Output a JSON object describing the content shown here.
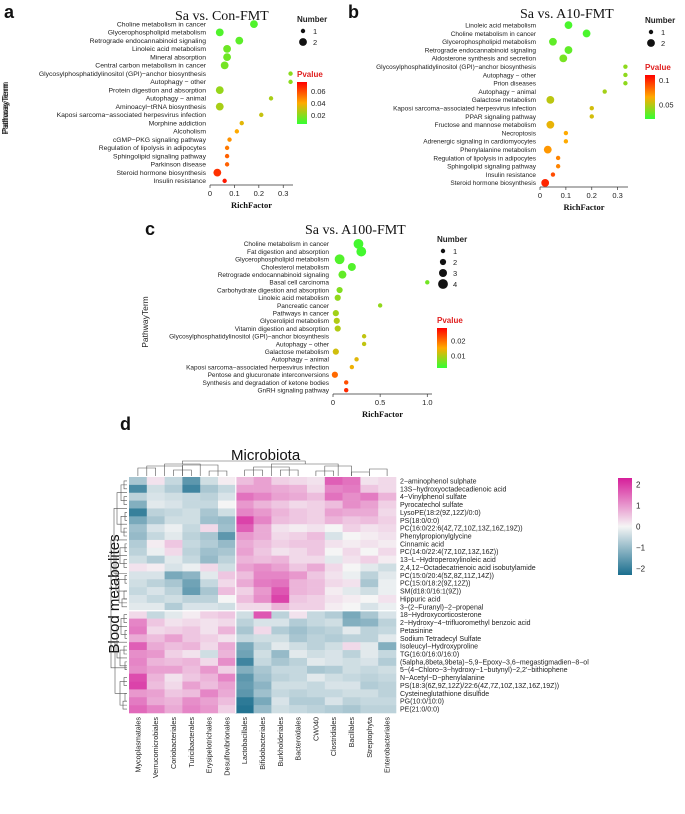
{
  "colors": {
    "low": "#33ff33",
    "mid": "#ffaa00",
    "high": "#ff0000",
    "heat_neg": "#1a6e8e",
    "heat_mid": "#f5f5f5",
    "heat_pos": "#d61e9a"
  },
  "panels": [
    {
      "letter": "a",
      "chart_data": {
        "type": "scatter",
        "title": "Sa vs. Con-FMT",
        "xlabel": "RichFactor",
        "ylabel": "PathwayTerm",
        "xticks": [
          "0",
          "0.1",
          "0.2",
          "0.3"
        ],
        "xlim": [
          0,
          0.34
        ],
        "size_legend_title": "Number",
        "size_legend": [
          "1",
          "2"
        ],
        "color_legend_title": "Pvalue",
        "color_legend": [
          "0.06",
          "0.04",
          "0.02"
        ],
        "cmin": 0.005,
        "cmax": 0.075,
        "terms": [
          "Choline metabolism in cancer",
          "Glycerophospholipid metabolism",
          "Retrograde endocannabinoid signaling",
          "Linoleic acid metabolism",
          "Mineral absorption",
          "Central carbon metabolism in cancer",
          "Glycosylphosphatidylinositol (GPI)−anchor biosynthesis",
          "Autophagy − other",
          "Protein digestion and absorption",
          "Autophagy − animal",
          "Aminoacyl−tRNA biosynthesis",
          "Kaposi sarcoma−associated herpesvirus infection",
          "Morphine addiction",
          "Alcoholism",
          "cGMP−PKG signaling pathway",
          "Regulation of lipolysis in adipocytes",
          "Sphingolipid signaling pathway",
          "Parkinson disease",
          "Steroid hormone biosynthesis",
          "Insulin resistance"
        ],
        "x": [
          0.18,
          0.04,
          0.12,
          0.07,
          0.07,
          0.06,
          0.33,
          0.33,
          0.04,
          0.25,
          0.04,
          0.21,
          0.13,
          0.11,
          0.08,
          0.07,
          0.07,
          0.07,
          0.03,
          0.06
        ],
        "count": [
          2,
          2,
          2,
          2,
          2,
          2,
          1,
          1,
          2,
          1,
          2,
          1,
          1,
          1,
          1,
          1,
          1,
          1,
          2,
          1
        ],
        "pvalue": [
          0.01,
          0.01,
          0.012,
          0.015,
          0.015,
          0.016,
          0.02,
          0.02,
          0.022,
          0.025,
          0.025,
          0.03,
          0.035,
          0.04,
          0.045,
          0.05,
          0.055,
          0.055,
          0.065,
          0.07
        ]
      }
    },
    {
      "letter": "b",
      "chart_data": {
        "type": "scatter",
        "title": "Sa vs. A10-FMT",
        "xlabel": "RichFactor",
        "ylabel": "PathwayTerm",
        "xticks": [
          "0",
          "0.1",
          "0.2",
          "0.3"
        ],
        "xlim": [
          0,
          0.34
        ],
        "size_legend_title": "Number",
        "size_legend": [
          "1",
          "2"
        ],
        "color_legend_title": "Pvalue",
        "color_legend": [
          "0.1",
          "0.05"
        ],
        "cmin": 0.02,
        "cmax": 0.11,
        "terms": [
          "Linoleic acid metabolism",
          "Choline metabolism in cancer",
          "Glycerophospholipid metabolism",
          "Retrograde endocannabinoid signaling",
          "Aldosterone synthesis and secretion",
          "Glycosylphosphatidylinositol (GPI)−anchor biosynthesis",
          "Autophagy − other",
          "Prion diseases",
          "Autophagy − animal",
          "Galactose metabolism",
          "Kaposi sarcoma−associated herpesvirus infection",
          "PPAR signaling pathway",
          "Fructose and mannose metabolism",
          "Necroptosis",
          "Adrenergic signaling in cardiomyocytes",
          "Phenylalanine metabolism",
          "Regulation of lipolysis in adipocytes",
          "Sphingolipid signaling pathway",
          "Insulin resistance",
          "Steroid hormone biosynthesis"
        ],
        "x": [
          0.11,
          0.18,
          0.05,
          0.11,
          0.09,
          0.33,
          0.33,
          0.33,
          0.25,
          0.04,
          0.2,
          0.2,
          0.04,
          0.1,
          0.1,
          0.03,
          0.07,
          0.07,
          0.05,
          0.02
        ],
        "count": [
          2,
          2,
          2,
          2,
          2,
          1,
          1,
          1,
          1,
          2,
          1,
          1,
          2,
          1,
          1,
          2,
          1,
          1,
          1,
          2
        ],
        "pvalue": [
          0.025,
          0.025,
          0.03,
          0.03,
          0.035,
          0.04,
          0.04,
          0.04,
          0.045,
          0.05,
          0.055,
          0.055,
          0.06,
          0.065,
          0.065,
          0.07,
          0.075,
          0.075,
          0.09,
          0.1
        ]
      }
    },
    {
      "letter": "c",
      "chart_data": {
        "type": "scatter",
        "title": "Sa vs. A100-FMT",
        "xlabel": "RichFactor",
        "ylabel": "PathwayTerm",
        "xticks": [
          "0",
          "0.5",
          "1.0"
        ],
        "xlim": [
          0,
          1.05
        ],
        "size_legend_title": "Number",
        "size_legend": [
          "1",
          "2",
          "3",
          "4"
        ],
        "color_legend_title": "Pvalue",
        "color_legend": [
          "0.02",
          "0.01"
        ],
        "cmin": 0.002,
        "cmax": 0.028,
        "terms": [
          "Choline metabolism in cancer",
          "Fat digestion and absorption",
          "Glycerophospholipid metabolism",
          "Cholesterol metabolism",
          "Retrograde endocannabinoid signaling",
          "Basal cell carcinoma",
          "Carbohydrate digestion and absorption",
          "Linoleic acid metabolism",
          "Pancreatic cancer",
          "Pathways in cancer",
          "Glycerolipid metabolism",
          "Vitamin digestion and absorption",
          "Glycosylphosphatidylinositol (GPI)−anchor biosynthesis",
          "Autophagy − other",
          "Galactose metabolism",
          "Autophagy − animal",
          "Kaposi sarcoma−associated herpesvirus infection",
          "Pentose and glucuronate interconversions",
          "Synthesis and degradation of ketone bodies",
          "GnRH signaling pathway"
        ],
        "x": [
          0.27,
          0.3,
          0.07,
          0.2,
          0.1,
          1.0,
          0.07,
          0.05,
          0.5,
          0.03,
          0.04,
          0.05,
          0.33,
          0.33,
          0.03,
          0.25,
          0.2,
          0.02,
          0.14,
          0.14
        ],
        "count": [
          4,
          4,
          4,
          3,
          3,
          1,
          2,
          2,
          1,
          2,
          2,
          2,
          1,
          1,
          2,
          1,
          1,
          2,
          1,
          1
        ],
        "pvalue": [
          0.003,
          0.003,
          0.004,
          0.004,
          0.005,
          0.006,
          0.007,
          0.008,
          0.008,
          0.009,
          0.01,
          0.01,
          0.011,
          0.011,
          0.012,
          0.013,
          0.014,
          0.02,
          0.022,
          0.025
        ]
      }
    }
  ],
  "heatmap": {
    "letter": "d",
    "chart_data": {
      "type": "heatmap",
      "title": "Microbiota",
      "ylabel": "Blood metabolites",
      "colorbar_ticks": [
        "2",
        "1",
        "0",
        "−1",
        "−2"
      ],
      "columns": [
        "Mycoplasmatales",
        "Verrucomicrobiales",
        "Coriobacteriales",
        "Turicibacterales",
        "Erysipelotrichales",
        "Desulfovibrionales",
        "Lactobacillales",
        "Bifidobacteriales",
        "Burkholderiales",
        "Bacteroidales",
        "CW040",
        "Clostridiales",
        "Bacillales",
        "Streptophyta",
        "Enterobacteriales"
      ],
      "rows": [
        "2−aminophenol sulphate",
        "13S−hydroxyoctadecadienoic acid",
        "4−Vinylphenol sulfate",
        "Pyrocatechol sulfate",
        "LysoPE(18:2(9Z,12Z)/0:0)",
        "PS(18:0/0:0)",
        "PC(16:0/22:6(4Z,7Z,10Z,13Z,16Z,19Z))",
        "Phenylpropionylglycine",
        "Cinnamic acid",
        "PC(14:0/22:4(7Z,10Z,13Z,16Z))",
        "13−L−Hydroperoxylinoleic acid",
        "2,4,12−Octadecatrienoic acid isobutylamide",
        "PC(15:0/20:4(5Z,8Z,11Z,14Z))",
        "PC(15:0/18:2(9Z,12Z))",
        "SM(d18:0/16:1(9Z))",
        "Hippuric acid",
        "3−(2−Furanyl)−2−propenal",
        "18−Hydroxycorticosterone",
        "2−Hydroxy−4−trifluoromethyl benzoic acid",
        "Petasinine",
        "Sodium Tetradecyl Sulfate",
        "Isoleucyl−Hydroxyproline",
        "TG(16:0/16:0/16:0)",
        "(5alpha,8beta,9beta)−5,9−Epoxy−3,6−megastigmadien−8−ol",
        "5−(4−Chloro−3−hydroxy−1−butynyl)−2,2'−bithiophene",
        "N−Acetyl−D−phenylalanine",
        "PS(18:3(6Z,9Z,12Z)/22:6(4Z,7Z,10Z,13Z,16Z,19Z))",
        "Cysteineglutathione disulfide",
        "PG(10:0/10:0)",
        "PE(21:0/0:0)"
      ],
      "values": [
        [
          -0.8,
          0.2,
          -0.5,
          -1.6,
          -0.4,
          0.1,
          0.6,
          0.9,
          0.4,
          0.3,
          0.2,
          1.6,
          1.4,
          0.2,
          0.3
        ],
        [
          -1.8,
          -0.4,
          -0.7,
          -1.9,
          -0.8,
          -0.5,
          0.9,
          0.9,
          0.8,
          0.7,
          0.3,
          1.2,
          1.3,
          0.5,
          0.3
        ],
        [
          -0.6,
          -0.3,
          -0.4,
          -0.5,
          -0.6,
          -0.3,
          1.4,
          1.2,
          0.9,
          0.8,
          0.6,
          1.4,
          1.1,
          1.3,
          0.7
        ],
        [
          -1.2,
          -0.2,
          -0.3,
          -0.5,
          -0.5,
          0.0,
          1.0,
          0.7,
          0.5,
          0.3,
          0.4,
          0.6,
          1.1,
          0.9,
          0.4
        ],
        [
          -2.0,
          -0.6,
          -0.5,
          -0.4,
          -0.8,
          -0.4,
          1.2,
          1.0,
          0.7,
          0.5,
          0.4,
          0.9,
          0.8,
          0.8,
          0.3
        ],
        [
          -1.3,
          -0.8,
          -0.4,
          -0.4,
          -0.9,
          -1.0,
          1.9,
          1.2,
          0.6,
          0.5,
          0.4,
          0.7,
          0.5,
          0.6,
          0.4
        ],
        [
          -0.9,
          -0.3,
          -0.1,
          -0.5,
          0.3,
          -0.9,
          1.6,
          0.8,
          0.2,
          0.1,
          0.2,
          0.0,
          0.4,
          0.2,
          0.3
        ],
        [
          -1.0,
          -0.5,
          -0.2,
          -0.6,
          -0.8,
          -1.6,
          1.0,
          0.8,
          0.3,
          0.4,
          0.6,
          -0.3,
          0.0,
          0.1,
          0.2
        ],
        [
          -0.7,
          0.1,
          0.5,
          -0.5,
          -0.7,
          -1.0,
          0.8,
          0.6,
          0.4,
          0.5,
          0.5,
          0.2,
          0.1,
          0.2,
          0.1
        ],
        [
          -0.6,
          -0.1,
          0.3,
          -0.6,
          -0.9,
          -0.8,
          0.9,
          0.5,
          0.2,
          0.3,
          0.5,
          0.0,
          0.3,
          0.0,
          0.3
        ],
        [
          -0.4,
          -0.7,
          -0.2,
          -0.5,
          -1.0,
          -0.6,
          0.7,
          0.6,
          0.7,
          0.3,
          0.3,
          -0.2,
          0.2,
          0.4,
          0.1
        ],
        [
          0.2,
          0.1,
          -0.3,
          -0.1,
          0.3,
          -0.4,
          0.9,
          1.1,
          0.9,
          0.5,
          0.8,
          0.3,
          0.0,
          -0.2,
          -0.4
        ],
        [
          -0.3,
          -0.3,
          -1.3,
          -1.1,
          -0.2,
          0.5,
          0.6,
          1.2,
          1.2,
          1.0,
          0.5,
          0.2,
          -0.1,
          -0.6,
          -0.2
        ],
        [
          -0.4,
          -0.6,
          -0.8,
          -1.4,
          -0.5,
          0.3,
          0.8,
          1.3,
          1.4,
          0.7,
          0.6,
          0.3,
          0.2,
          -0.8,
          -0.1
        ],
        [
          -0.5,
          -0.3,
          -0.6,
          -1.5,
          -0.8,
          0.6,
          0.4,
          1.0,
          1.7,
          0.7,
          0.6,
          0.1,
          -0.2,
          -0.4,
          -0.1
        ],
        [
          -0.3,
          -0.5,
          -0.4,
          -0.6,
          -0.6,
          0.0,
          0.6,
          1.1,
          1.9,
          0.5,
          0.4,
          0.2,
          0.1,
          0.0,
          0.2
        ],
        [
          -0.2,
          -0.2,
          -0.7,
          -0.3,
          -0.3,
          -0.4,
          0.3,
          0.3,
          0.7,
          0.4,
          0.4,
          0.1,
          0.0,
          -0.3,
          -0.1
        ],
        [
          0.3,
          -0.5,
          -0.2,
          0.1,
          0.4,
          0.5,
          -0.4,
          1.7,
          -0.6,
          0.2,
          -0.5,
          -0.7,
          -1.3,
          -0.8,
          -0.3
        ],
        [
          1.2,
          0.5,
          0.2,
          0.3,
          0.2,
          0.3,
          -0.6,
          -0.3,
          -0.3,
          -0.7,
          -0.5,
          -0.4,
          -1.2,
          -1.1,
          -0.6
        ],
        [
          1.3,
          0.3,
          0.4,
          0.5,
          0.2,
          0.7,
          -0.8,
          0.3,
          -0.7,
          -0.9,
          -0.7,
          -0.6,
          -0.2,
          -0.6,
          -0.5
        ],
        [
          0.8,
          0.6,
          0.9,
          0.5,
          0.4,
          0.2,
          -0.5,
          -0.4,
          -0.4,
          -0.8,
          -0.6,
          -0.7,
          -0.6,
          -0.6,
          -0.2
        ],
        [
          1.6,
          0.8,
          0.6,
          0.7,
          0.3,
          0.8,
          -1.3,
          -0.6,
          -0.2,
          -0.4,
          -0.6,
          -0.4,
          0.3,
          -0.2,
          -1.2
        ],
        [
          1.1,
          1.0,
          0.4,
          0.2,
          -0.4,
          0.7,
          -1.4,
          -0.4,
          -1.0,
          -0.2,
          -0.4,
          -0.3,
          -0.6,
          -0.2,
          -0.5
        ],
        [
          1.2,
          0.7,
          0.6,
          0.7,
          0.3,
          1.1,
          -1.9,
          -0.5,
          -0.8,
          -0.6,
          -0.2,
          -0.3,
          -0.4,
          -0.3,
          -0.7
        ],
        [
          1.1,
          0.9,
          0.9,
          0.6,
          1.0,
          0.4,
          -1.2,
          -0.8,
          -0.5,
          -0.5,
          -0.8,
          -0.7,
          -0.4,
          -0.5,
          -0.4
        ],
        [
          1.8,
          0.7,
          0.2,
          0.5,
          0.7,
          1.2,
          -1.6,
          -0.9,
          -0.6,
          -0.5,
          -0.2,
          -0.4,
          -0.5,
          -0.6,
          -0.5
        ],
        [
          1.9,
          0.6,
          0.3,
          0.9,
          0.6,
          0.9,
          -1.5,
          -1.1,
          -0.4,
          -0.4,
          -0.5,
          -0.3,
          -0.3,
          -0.7,
          -0.6
        ],
        [
          1.0,
          0.9,
          0.5,
          0.6,
          1.2,
          0.8,
          -1.6,
          -0.9,
          -0.5,
          -0.6,
          -0.5,
          -0.5,
          -0.4,
          -0.4,
          -0.6
        ],
        [
          1.3,
          0.8,
          0.7,
          1.1,
          0.9,
          0.6,
          -2.1,
          -1.3,
          -0.3,
          -0.7,
          -0.7,
          -0.3,
          -0.6,
          -0.5,
          -0.5
        ],
        [
          1.5,
          1.2,
          0.8,
          1.2,
          1.0,
          0.4,
          -2.2,
          -1.0,
          -0.4,
          -0.5,
          -0.6,
          -0.7,
          -0.8,
          -0.6,
          -0.6
        ]
      ]
    }
  }
}
